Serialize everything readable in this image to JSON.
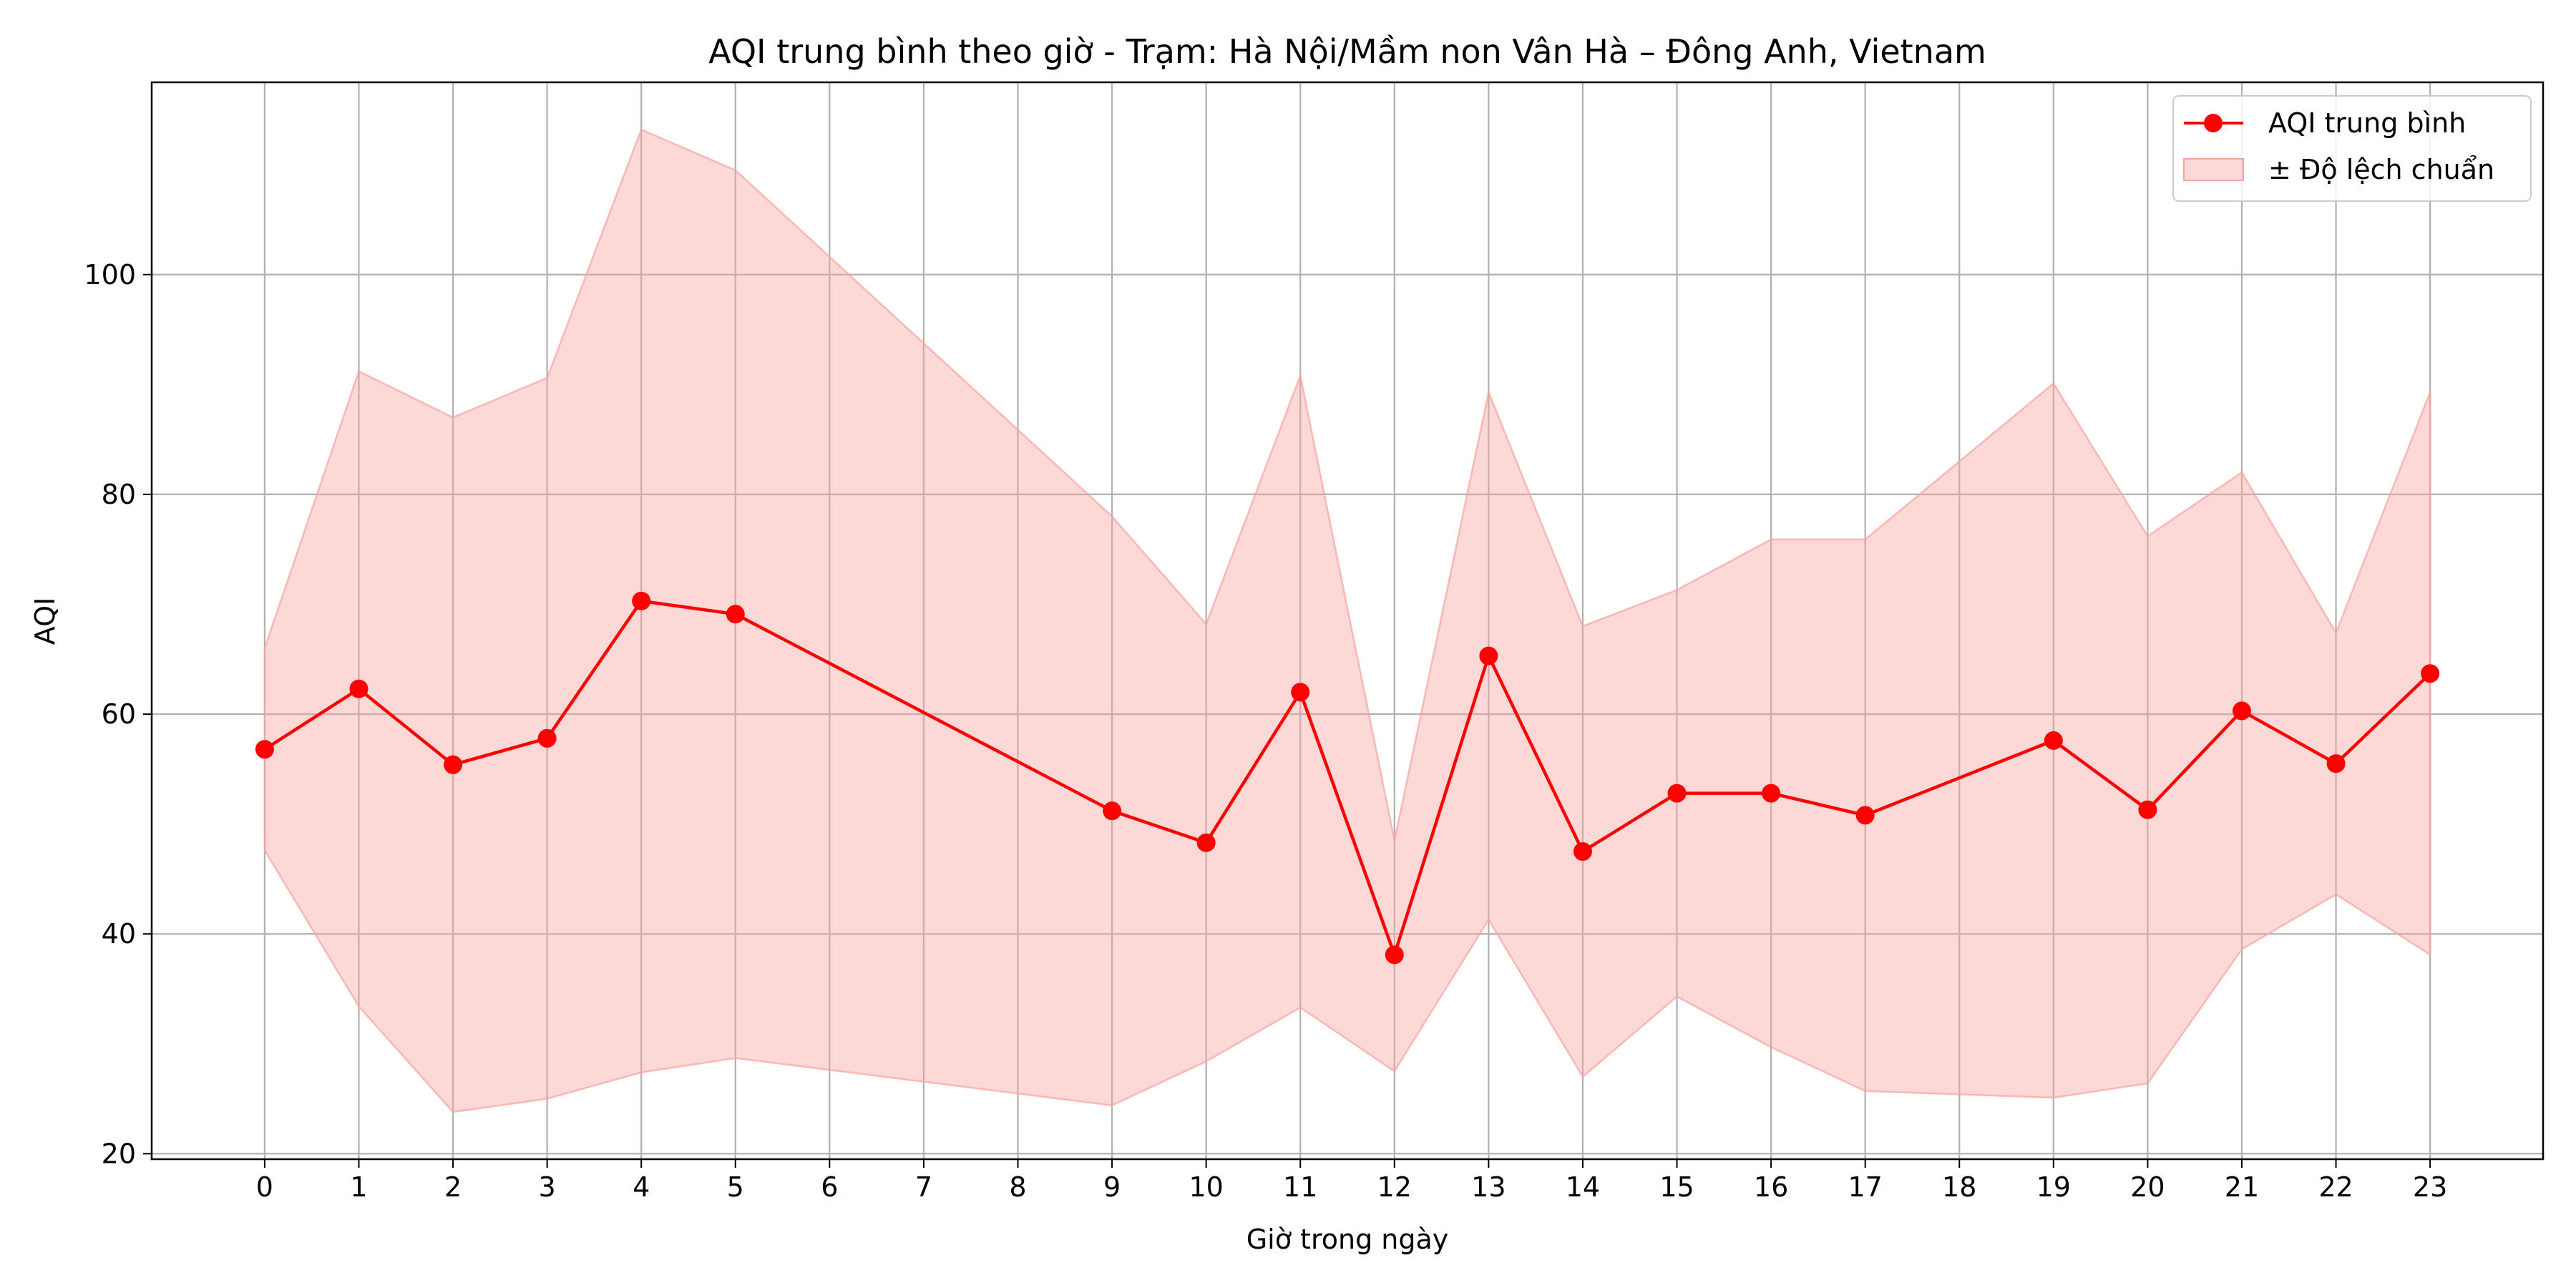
{
  "chart_data": {
    "type": "line",
    "title": "AQI trung bình theo giờ - Trạm: Hà Nội/Mầm non Vân Hà – Đông Anh, Vietnam",
    "xlabel": "Giờ trong ngày",
    "ylabel": "AQI",
    "xlim": [
      -1.2,
      24.2
    ],
    "ylim": [
      19.5,
      117.5
    ],
    "x_ticks": [
      0,
      1,
      2,
      3,
      4,
      5,
      6,
      7,
      8,
      9,
      10,
      11,
      12,
      13,
      14,
      15,
      16,
      17,
      18,
      19,
      20,
      21,
      22,
      23
    ],
    "y_ticks": [
      20,
      40,
      60,
      80,
      100
    ],
    "grid": true,
    "legend_position": "top-right",
    "series": [
      {
        "name": "AQI trung bình",
        "color": "#ff0000",
        "marker": "circle",
        "x": [
          0,
          1,
          2,
          3,
          4,
          5,
          9,
          10,
          11,
          12,
          13,
          14,
          15,
          16,
          17,
          19,
          20,
          21,
          22,
          23
        ],
        "y": [
          56.8,
          62.3,
          55.4,
          57.8,
          70.3,
          69.1,
          51.2,
          48.3,
          62.0,
          38.1,
          65.3,
          47.5,
          52.8,
          52.8,
          50.8,
          57.6,
          51.3,
          60.3,
          55.5,
          63.7
        ]
      }
    ],
    "band": {
      "name": "± Độ lệch chuẩn",
      "color": "#f8a39e",
      "x": [
        0,
        1,
        2,
        3,
        4,
        5,
        9,
        10,
        11,
        12,
        13,
        14,
        15,
        16,
        17,
        19,
        20,
        21,
        22,
        23
      ],
      "upper": [
        66.0,
        91.2,
        87.0,
        90.6,
        113.2,
        109.5,
        78.0,
        68.2,
        90.8,
        48.5,
        89.3,
        68.0,
        71.3,
        75.9,
        75.9,
        90.1,
        76.2,
        82.0,
        67.4,
        89.3
      ],
      "lower": [
        47.6,
        33.4,
        23.8,
        25.0,
        27.4,
        28.7,
        24.4,
        28.4,
        33.3,
        27.5,
        41.3,
        27.0,
        34.3,
        29.7,
        25.7,
        25.1,
        26.4,
        38.6,
        43.6,
        38.1
      ]
    }
  }
}
